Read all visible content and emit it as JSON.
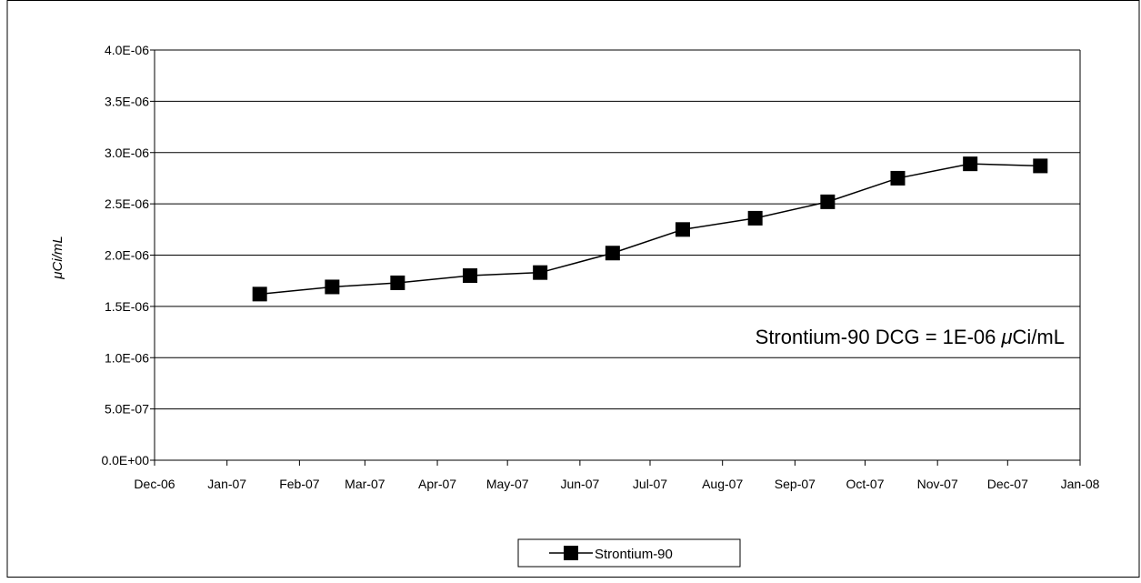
{
  "chart_data": {
    "type": "line",
    "title": "",
    "xlabel": "",
    "ylabel": "μCi/mL",
    "x_tick_labels": [
      "Dec-06",
      "Jan-07",
      "Feb-07",
      "Mar-07",
      "Apr-07",
      "May-07",
      "Jun-07",
      "Jul-07",
      "Aug-07",
      "Sep-07",
      "Oct-07",
      "Nov-07",
      "Dec-07",
      "Jan-08"
    ],
    "y_tick_labels": [
      "0.0E+00",
      "5.0E-07",
      "1.0E-06",
      "1.5E-06",
      "2.0E-06",
      "2.5E-06",
      "3.0E-06",
      "3.5E-06",
      "4.0E-06"
    ],
    "x_range": [
      "2006-12-01",
      "2008-01-01"
    ],
    "ylim": [
      0,
      4e-06
    ],
    "y_step": 5e-07,
    "grid": "horizontal",
    "legend_position": "bottom-center",
    "series": [
      {
        "name": "Strontium-90",
        "color": "#000000",
        "marker": "square",
        "x": [
          "2007-01-15",
          "2007-02-15",
          "2007-03-15",
          "2007-04-15",
          "2007-05-15",
          "2007-06-15",
          "2007-07-15",
          "2007-08-15",
          "2007-09-15",
          "2007-10-15",
          "2007-11-15",
          "2007-12-15"
        ],
        "values": [
          1.62e-06,
          1.69e-06,
          1.73e-06,
          1.8e-06,
          1.83e-06,
          2.02e-06,
          2.25e-06,
          2.36e-06,
          2.52e-06,
          2.75e-06,
          2.89e-06,
          2.87e-06
        ]
      }
    ],
    "annotations": [
      {
        "prefix": "Strontium-90 DCG = 1E-06 ",
        "mu": "μ",
        "suffix": "Ci/mL"
      }
    ]
  }
}
